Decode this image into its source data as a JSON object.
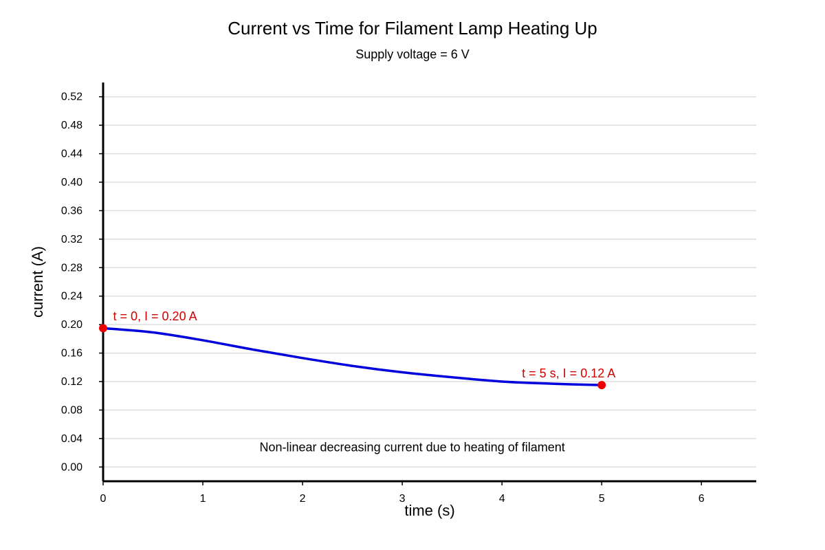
{
  "chart_data": {
    "type": "line",
    "title": "Current vs Time for Filament Lamp Heating Up",
    "subtitle": "Supply voltage = 6 V",
    "xlabel": "time (s)",
    "ylabel": "current (A)",
    "xlim": [
      0,
      6.55
    ],
    "ylim": [
      -0.02,
      0.54
    ],
    "x_ticks": [
      0,
      1,
      2,
      3,
      4,
      5,
      6
    ],
    "x_tick_labels": [
      "0",
      "1",
      "2",
      "3",
      "4",
      "5",
      "6"
    ],
    "y_ticks": [
      0,
      0.04,
      0.08,
      0.12,
      0.16,
      0.2,
      0.24,
      0.28,
      0.32,
      0.36,
      0.4,
      0.44,
      0.48,
      0.52
    ],
    "y_tick_labels": [
      "0.00",
      "0.04",
      "0.08",
      "0.12",
      "0.16",
      "0.20",
      "0.24",
      "0.28",
      "0.32",
      "0.36",
      "0.40",
      "0.44",
      "0.48",
      "0.52"
    ],
    "grid": true,
    "series": [
      {
        "color": "#0000dd",
        "x": [
          0,
          0.5,
          1,
          1.5,
          2,
          2.5,
          3,
          3.5,
          4,
          4.5,
          5
        ],
        "y": [
          0.195,
          0.189,
          0.178,
          0.165,
          0.153,
          0.142,
          0.133,
          0.126,
          0.12,
          0.117,
          0.115
        ]
      }
    ],
    "markers": [
      {
        "x": 0,
        "y": 0.195,
        "color": "#ee0000"
      },
      {
        "x": 5,
        "y": 0.115,
        "color": "#ee0000"
      }
    ],
    "annotations": [
      {
        "text": "t = 0, I = 0.20 A",
        "x": 0.1,
        "y": 0.206,
        "anchor": "start",
        "color": "#d00000"
      },
      {
        "text": "t = 5 s, I = 0.12 A",
        "x": 4.2,
        "y": 0.126,
        "anchor": "start",
        "color": "#d00000"
      },
      {
        "text": "Non-linear decreasing current due to heating of filament",
        "x": 3.1,
        "y": 0.022,
        "anchor": "middle",
        "color": "#000000"
      }
    ]
  }
}
